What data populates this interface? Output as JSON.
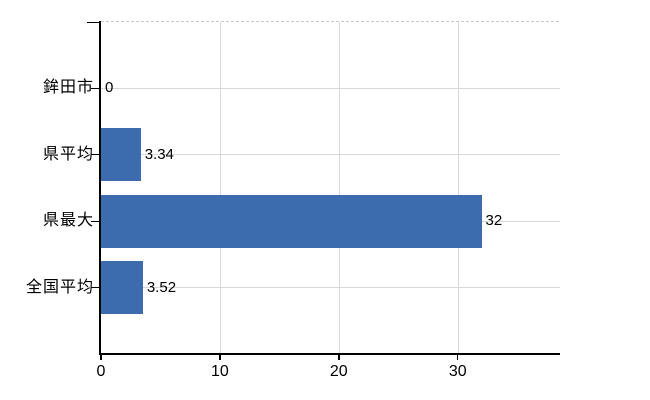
{
  "chart_data": {
    "type": "bar",
    "orientation": "horizontal",
    "categories": [
      "鉾田市",
      "県平均",
      "県最大",
      "全国平均"
    ],
    "values": [
      0,
      3.34,
      32,
      3.52
    ],
    "value_labels": [
      "0",
      "3.34",
      "32",
      "3.52"
    ],
    "x_ticks": [
      0,
      10,
      20,
      30
    ],
    "x_tick_labels": [
      "0",
      "10",
      "20",
      "30"
    ],
    "xlim": [
      0,
      38.6
    ],
    "grid": true,
    "legend": false,
    "colors": {
      "bar": "#3c6cae",
      "axis": "#000000",
      "horizontal_grid": "#d5dcd5",
      "vertical_grid": "#d9d9d9",
      "plot_top_border_dashed": "#c9c9c9",
      "text": "#000000",
      "background": "#ffffff"
    }
  }
}
